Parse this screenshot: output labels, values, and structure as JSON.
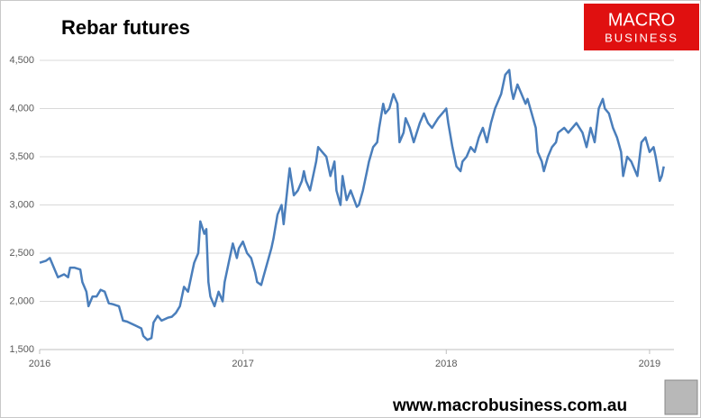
{
  "chart_data": {
    "type": "line",
    "title": "Rebar futures",
    "x": [
      2016.0,
      2016.03,
      2016.05,
      2016.07,
      2016.09,
      2016.12,
      2016.14,
      2016.15,
      2016.17,
      2016.2,
      2016.21,
      2016.23,
      2016.24,
      2016.26,
      2016.28,
      2016.3,
      2016.32,
      2016.34,
      2016.36,
      2016.39,
      2016.41,
      2016.43,
      2016.47,
      2016.5,
      2016.51,
      2016.53,
      2016.55,
      2016.56,
      2016.58,
      2016.6,
      2016.63,
      2016.65,
      2016.67,
      2016.69,
      2016.71,
      2016.73,
      2016.75,
      2016.76,
      2016.78,
      2016.79,
      2016.81,
      2016.82,
      2016.83,
      2016.84,
      2016.86,
      2016.88,
      2016.9,
      2016.91,
      2016.93,
      2016.95,
      2016.97,
      2016.98,
      2017.0,
      2017.02,
      2017.04,
      2017.06,
      2017.07,
      2017.09,
      2017.1,
      2017.12,
      2017.14,
      2017.15,
      2017.17,
      2017.19,
      2017.2,
      2017.22,
      2017.23,
      2017.25,
      2017.27,
      2017.29,
      2017.3,
      2017.31,
      2017.33,
      2017.36,
      2017.37,
      2017.39,
      2017.41,
      2017.43,
      2017.45,
      2017.46,
      2017.48,
      2017.49,
      2017.51,
      2017.53,
      2017.56,
      2017.57,
      2017.59,
      2017.61,
      2017.62,
      2017.64,
      2017.66,
      2017.67,
      2017.69,
      2017.7,
      2017.72,
      2017.74,
      2017.76,
      2017.77,
      2017.79,
      2017.8,
      2017.82,
      2017.84,
      2017.87,
      2017.89,
      2017.91,
      2017.93,
      2017.96,
      2017.98,
      2018.0,
      2018.01,
      2018.03,
      2018.05,
      2018.07,
      2018.08,
      2018.1,
      2018.12,
      2018.14,
      2018.16,
      2018.18,
      2018.2,
      2018.22,
      2018.24,
      2018.27,
      2018.29,
      2018.31,
      2018.32,
      2018.33,
      2018.35,
      2018.37,
      2018.39,
      2018.4,
      2018.42,
      2018.44,
      2018.45,
      2018.47,
      2018.48,
      2018.5,
      2018.52,
      2018.54,
      2018.55,
      2018.58,
      2018.6,
      2018.62,
      2018.64,
      2018.67,
      2018.69,
      2018.71,
      2018.73,
      2018.75,
      2018.77,
      2018.78,
      2018.8,
      2018.82,
      2018.84,
      2018.86,
      2018.87,
      2018.89,
      2018.91,
      2018.93,
      2018.94,
      2018.96,
      2018.98,
      2019.0,
      2019.02,
      2019.03,
      2019.05,
      2019.06,
      2019.07
    ],
    "series": [
      {
        "name": "Rebar futures",
        "color": "#4a7ebb",
        "values": [
          2400,
          2420,
          2450,
          2350,
          2250,
          2280,
          2250,
          2350,
          2350,
          2330,
          2200,
          2100,
          1950,
          2050,
          2050,
          2120,
          2100,
          1980,
          1970,
          1950,
          1800,
          1790,
          1750,
          1720,
          1640,
          1600,
          1620,
          1780,
          1850,
          1800,
          1830,
          1840,
          1880,
          1950,
          2150,
          2100,
          2300,
          2400,
          2500,
          2830,
          2700,
          2750,
          2200,
          2050,
          1950,
          2100,
          2000,
          2200,
          2400,
          2600,
          2450,
          2550,
          2620,
          2500,
          2450,
          2300,
          2200,
          2170,
          2250,
          2400,
          2550,
          2650,
          2900,
          3000,
          2800,
          3200,
          3380,
          3100,
          3150,
          3250,
          3350,
          3250,
          3150,
          3450,
          3600,
          3550,
          3500,
          3300,
          3450,
          3150,
          3000,
          3300,
          3050,
          3150,
          2980,
          3000,
          3150,
          3350,
          3450,
          3600,
          3650,
          3800,
          4050,
          3950,
          4000,
          4150,
          4050,
          3650,
          3750,
          3900,
          3800,
          3650,
          3850,
          3950,
          3850,
          3800,
          3900,
          3950,
          4000,
          3850,
          3600,
          3400,
          3350,
          3450,
          3500,
          3600,
          3550,
          3700,
          3800,
          3650,
          3850,
          4000,
          4150,
          4350,
          4400,
          4200,
          4100,
          4250,
          4150,
          4050,
          4100,
          3950,
          3800,
          3550,
          3450,
          3350,
          3500,
          3600,
          3650,
          3750,
          3800,
          3750,
          3800,
          3850,
          3750,
          3600,
          3800,
          3650,
          4000,
          4100,
          4000,
          3950,
          3800,
          3700,
          3550,
          3300,
          3500,
          3450,
          3350,
          3300,
          3650,
          3700,
          3550,
          3600,
          3500,
          3250,
          3300,
          3400
        ]
      }
    ],
    "xlim": [
      2016,
      2019.12
    ],
    "xticks": [
      2016,
      2017,
      2018,
      2019
    ],
    "ylim": [
      1500,
      4500
    ],
    "yticks": [
      {
        "value": 1500,
        "label": "1,500"
      },
      {
        "value": 2000,
        "label": "2,000"
      },
      {
        "value": 2500,
        "label": "2,500"
      },
      {
        "value": 3000,
        "label": "3,000"
      },
      {
        "value": 3500,
        "label": "3,500"
      },
      {
        "value": 4000,
        "label": "4,000"
      },
      {
        "value": 4500,
        "label": "4,500"
      }
    ],
    "grid": true
  },
  "logo": {
    "line1": "MACRO",
    "line2": "BUSINESS"
  },
  "footer": "www.macrobusiness.com.au"
}
